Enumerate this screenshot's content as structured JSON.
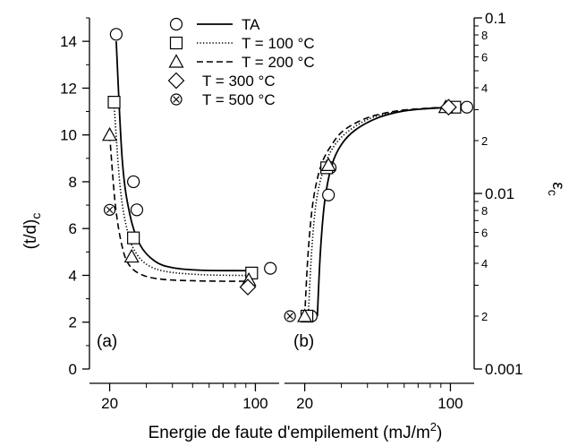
{
  "figure": {
    "xlabel": "Energie de faute d'empilement (mJ/m",
    "xlabel_sup": "2",
    "xlabel_end": ")"
  },
  "legend": {
    "placement": "top-center",
    "entries": [
      {
        "marker": "circle",
        "line": "solid",
        "label": "TA"
      },
      {
        "marker": "square",
        "line": "dotted",
        "label": "T = 100 °C"
      },
      {
        "marker": "triangle",
        "line": "dashed",
        "label": "T = 200 °C"
      },
      {
        "marker": "diamond",
        "line": "none",
        "label": "T = 300 °C"
      },
      {
        "marker": "circle-x",
        "line": "none",
        "label": "T = 500 °C"
      }
    ]
  },
  "chart_data": [
    {
      "panel": "(a)",
      "type": "scatter",
      "xscale": "log",
      "xlim": [
        16,
        130
      ],
      "xticks": [
        20,
        100
      ],
      "xticklabels": [
        "20",
        "100"
      ],
      "ylabel": "(t/d)",
      "ylabel_sub": "c",
      "ylim": [
        0,
        15
      ],
      "yticks": [
        0,
        2,
        4,
        6,
        8,
        10,
        12,
        14
      ],
      "yticklabels": [
        "0",
        "2",
        "4",
        "6",
        "8",
        "10",
        "12",
        "14"
      ],
      "grid": false,
      "series": [
        {
          "name": "TA",
          "marker": "circle",
          "line": "solid",
          "points": [
            [
              21.5,
              14.3
            ],
            [
              26,
              8.0
            ],
            [
              27,
              6.8
            ],
            [
              118,
              4.3
            ]
          ],
          "fit": [
            [
              21.5,
              14.0
            ],
            [
              23,
              8.9
            ],
            [
              25,
              6.6
            ],
            [
              28,
              5.3
            ],
            [
              33,
              4.6
            ],
            [
              40,
              4.33
            ],
            [
              55,
              4.22
            ],
            [
              90,
              4.2
            ],
            [
              100,
              4.2
            ]
          ]
        },
        {
          "name": "T = 100 °C",
          "marker": "square",
          "line": "dotted",
          "points": [
            [
              21,
              11.4
            ],
            [
              26,
              5.6
            ],
            [
              96,
              4.1
            ]
          ],
          "fit": [
            [
              21,
              11.3
            ],
            [
              22.5,
              7.7
            ],
            [
              24.5,
              5.8
            ],
            [
              27,
              4.9
            ],
            [
              31,
              4.4
            ],
            [
              38,
              4.15
            ],
            [
              55,
              4.03
            ],
            [
              80,
              4.0
            ],
            [
              96,
              4.0
            ]
          ]
        },
        {
          "name": "T = 200 °C",
          "marker": "triangle",
          "line": "dashed",
          "points": [
            [
              20,
              10.0
            ],
            [
              25.5,
              4.8
            ],
            [
              93,
              3.8
            ]
          ],
          "fit": [
            [
              20,
              10.0
            ],
            [
              21.3,
              7.0
            ],
            [
              23,
              5.2
            ],
            [
              25,
              4.4
            ],
            [
              29,
              4.0
            ],
            [
              36,
              3.83
            ],
            [
              50,
              3.77
            ],
            [
              70,
              3.75
            ],
            [
              93,
              3.75
            ]
          ]
        },
        {
          "name": "T = 300 °C",
          "marker": "diamond",
          "line": "none",
          "points": [
            [
              92,
              3.5
            ]
          ]
        },
        {
          "name": "T = 500 °C",
          "marker": "circle-x",
          "line": "none",
          "points": [
            [
              20,
              6.8
            ]
          ]
        }
      ]
    },
    {
      "panel": "(b)",
      "type": "scatter",
      "xscale": "log",
      "xlim": [
        16,
        130
      ],
      "xticks": [
        20,
        100
      ],
      "xticklabels": [
        "20",
        "100"
      ],
      "yscale": "log",
      "ylabel": "ε",
      "ylabel_sub": "c",
      "ylim": [
        0.001,
        0.1
      ],
      "yticklabels": [
        "0.001",
        "0.01",
        "0.1"
      ],
      "minor_ticklabels": [
        "2",
        "4",
        "6",
        "8"
      ],
      "grid": false,
      "series": [
        {
          "name": "TA",
          "marker": "circle",
          "line": "solid",
          "points": [
            [
              21.5,
              0.002
            ],
            [
              26,
              0.0098
            ],
            [
              26.5,
              0.014
            ],
            [
              120,
              0.031
            ]
          ],
          "fit": [
            [
              23,
              0.002
            ],
            [
              23.8,
              0.0047
            ],
            [
              25,
              0.0092
            ],
            [
              27,
              0.0145
            ],
            [
              30,
              0.019
            ],
            [
              35,
              0.023
            ],
            [
              45,
              0.027
            ],
            [
              60,
              0.0295
            ],
            [
              80,
              0.0305
            ],
            [
              105,
              0.031
            ]
          ]
        },
        {
          "name": "T = 100 °C",
          "marker": "square",
          "line": "dotted",
          "points": [
            [
              20.5,
              0.002
            ],
            [
              25.5,
              0.014
            ],
            [
              105,
              0.031
            ]
          ],
          "fit": [
            [
              20.8,
              0.002
            ],
            [
              21.6,
              0.0047
            ],
            [
              22.8,
              0.0092
            ],
            [
              25,
              0.0145
            ],
            [
              28,
              0.019
            ],
            [
              33,
              0.023
            ],
            [
              42,
              0.027
            ],
            [
              58,
              0.0295
            ],
            [
              80,
              0.0305
            ],
            [
              105,
              0.031
            ]
          ]
        },
        {
          "name": "T = 200 °C",
          "marker": "triangle",
          "line": "dashed",
          "points": [
            [
              20,
              0.002
            ],
            [
              26,
              0.0145
            ],
            [
              95,
              0.031
            ]
          ],
          "fit": [
            [
              20,
              0.002
            ],
            [
              20.8,
              0.0047
            ],
            [
              22,
              0.0092
            ],
            [
              24,
              0.0145
            ],
            [
              27,
              0.019
            ],
            [
              31,
              0.023
            ],
            [
              40,
              0.027
            ],
            [
              55,
              0.0295
            ],
            [
              75,
              0.0305
            ],
            [
              95,
              0.031
            ]
          ]
        },
        {
          "name": "T = 300 °C",
          "marker": "diamond",
          "line": "none",
          "points": [
            [
              98,
              0.031
            ]
          ]
        },
        {
          "name": "T = 500 °C",
          "marker": "circle-x",
          "line": "none",
          "points": [
            [
              17,
              0.002
            ]
          ]
        }
      ]
    }
  ]
}
